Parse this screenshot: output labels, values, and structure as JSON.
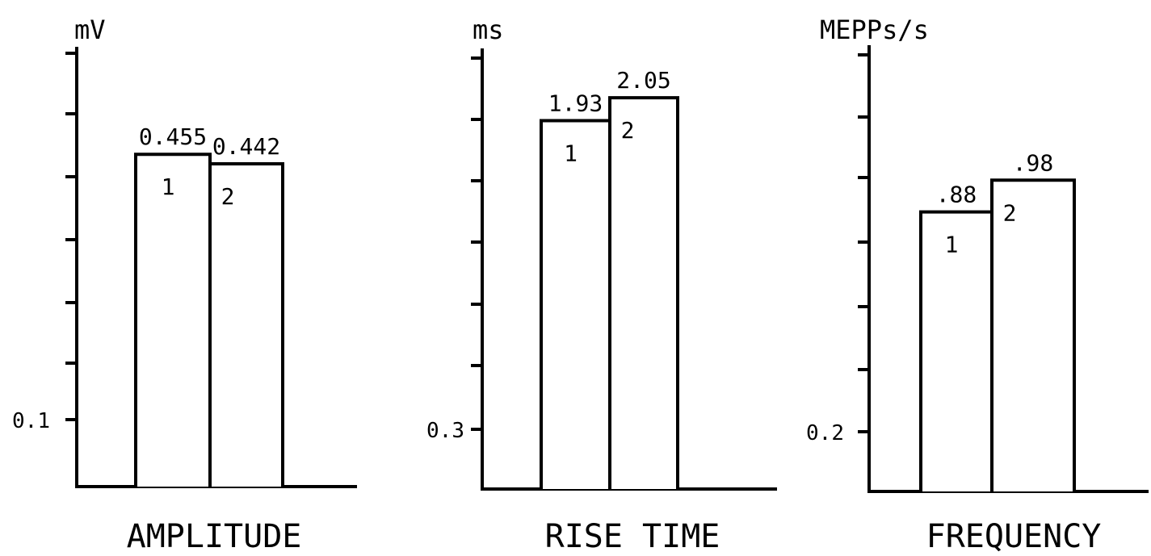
{
  "chart_data": [
    {
      "type": "bar",
      "unit_label": "mV",
      "xlabel": "AMPLITUDE",
      "y_tick_label": "0.1",
      "y_tick_value": 0.1,
      "ylim": [
        0.0,
        0.6
      ],
      "categories": [
        "1",
        "2"
      ],
      "values": [
        0.455,
        0.442
      ],
      "value_labels": [
        "0.455",
        "0.442"
      ]
    },
    {
      "type": "bar",
      "unit_label": "ms",
      "xlabel": "RISE    TIME",
      "y_tick_label": "0.3",
      "y_tick_value": 0.3,
      "ylim": [
        0.0,
        2.3
      ],
      "categories": [
        "1",
        "2"
      ],
      "values": [
        1.93,
        2.05
      ],
      "value_labels": [
        "1.93",
        "2.05"
      ]
    },
    {
      "type": "bar",
      "unit_label": "MEPPs/s",
      "xlabel": "FREQUENCY",
      "y_tick_label": "0.2",
      "y_tick_value": 0.2,
      "ylim": [
        0.0,
        1.4
      ],
      "categories": [
        "1",
        "2"
      ],
      "values": [
        0.88,
        0.98
      ],
      "value_labels": [
        ".88",
        ".98"
      ]
    }
  ]
}
